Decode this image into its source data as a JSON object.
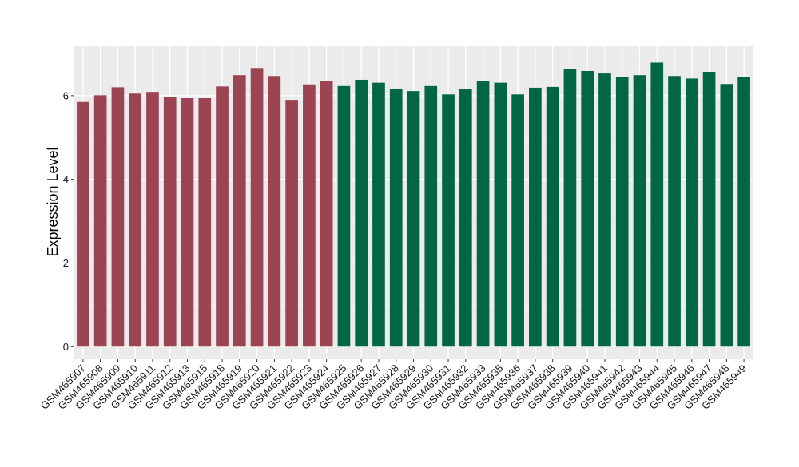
{
  "chart_data": {
    "type": "bar",
    "title": "",
    "xlabel": "",
    "ylabel": "Expression Level",
    "ylim": [
      -0.3,
      7.2
    ],
    "yticks": [
      0,
      2,
      4,
      6
    ],
    "grid": true,
    "legend": "none",
    "colors": {
      "group_a": "#9b4452",
      "group_b": "#016644",
      "panel_bg": "#ebebeb",
      "grid_major": "#ffffff",
      "axis_text": "#1a1a1a"
    },
    "categories": [
      "GSM465907",
      "GSM465908",
      "GSM465909",
      "GSM465910",
      "GSM465911",
      "GSM465912",
      "GSM465913",
      "GSM465915",
      "GSM465918",
      "GSM465919",
      "GSM465920",
      "GSM465921",
      "GSM465922",
      "GSM465923",
      "GSM465924",
      "GSM465925",
      "GSM465926",
      "GSM465927",
      "GSM465928",
      "GSM465929",
      "GSM465930",
      "GSM465931",
      "GSM465932",
      "GSM465933",
      "GSM465935",
      "GSM465936",
      "GSM465937",
      "GSM465938",
      "GSM465939",
      "GSM465940",
      "GSM465941",
      "GSM465942",
      "GSM465943",
      "GSM465944",
      "GSM465945",
      "GSM465946",
      "GSM465947",
      "GSM465948",
      "GSM465949"
    ],
    "values": [
      5.85,
      6.01,
      6.2,
      6.05,
      6.09,
      5.97,
      5.94,
      5.94,
      6.22,
      6.49,
      6.66,
      6.47,
      5.9,
      6.27,
      6.36,
      6.23,
      6.38,
      6.31,
      6.17,
      6.11,
      6.23,
      6.03,
      6.15,
      6.36,
      6.31,
      6.03,
      6.19,
      6.21,
      6.63,
      6.59,
      6.53,
      6.45,
      6.49,
      6.79,
      6.47,
      6.41,
      6.57,
      6.28,
      6.45
    ],
    "groups": [
      "a",
      "a",
      "a",
      "a",
      "a",
      "a",
      "a",
      "a",
      "a",
      "a",
      "a",
      "a",
      "a",
      "a",
      "a",
      "b",
      "b",
      "b",
      "b",
      "b",
      "b",
      "b",
      "b",
      "b",
      "b",
      "b",
      "b",
      "b",
      "b",
      "b",
      "b",
      "b",
      "b",
      "b",
      "b",
      "b",
      "b",
      "b",
      "b"
    ]
  }
}
